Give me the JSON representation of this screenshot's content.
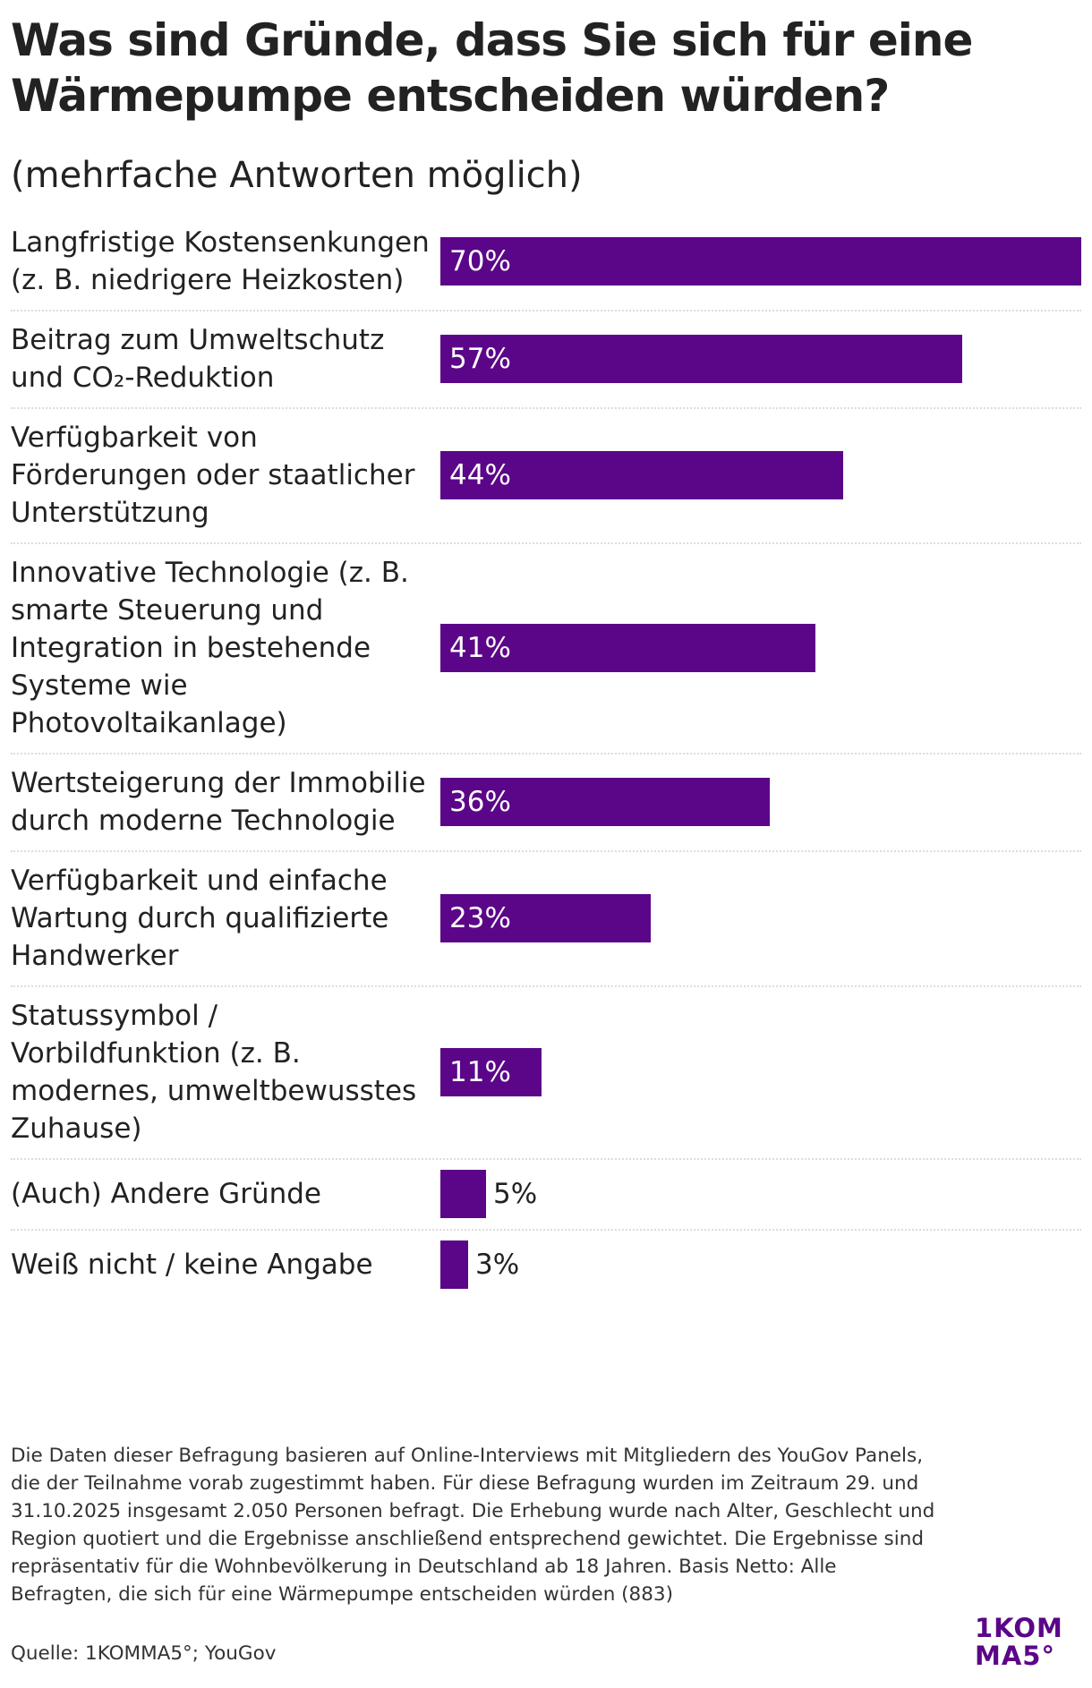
{
  "header": {
    "title": "Was sind Gründe, dass Sie sich für eine Wärmepumpe entscheiden würden?",
    "subtitle": "(mehrfache Antworten möglich)"
  },
  "colors": {
    "bar": "#5b0688",
    "text": "#222222",
    "divider": "#dddddd"
  },
  "chart_data": {
    "type": "bar",
    "orientation": "horizontal",
    "title": "Was sind Gründe, dass Sie sich für eine Wärmepumpe entscheiden würden?",
    "subtitle": "(mehrfache Antworten möglich)",
    "xlabel": "",
    "ylabel": "",
    "unit": "%",
    "xlim": [
      0,
      70
    ],
    "grid": false,
    "legend": "none",
    "categories": [
      "Langfristige Kostensenkungen (z. B. niedrigere Heizkosten)",
      "Beitrag zum Umweltschutz und CO₂-Reduktion",
      "Verfügbarkeit von Förderungen oder staatlicher Unterstützung",
      "Innovative Technologie (z. B. smarte Steuerung und Integration in bestehende Systeme wie Photovoltaikanlage)",
      "Wertsteigerung der Immobilie durch moderne Technologie",
      "Verfügbarkeit und einfache Wartung durch qualifizierte Handwerker",
      "Statussymbol / Vorbildfunktion (z. B. modernes, umweltbewusstes Zuhause)",
      "(Auch) Andere Gründe",
      "Weiß nicht / keine Angabe"
    ],
    "values": [
      70,
      57,
      44,
      41,
      36,
      23,
      11,
      5,
      3
    ],
    "value_labels": [
      "70%",
      "57%",
      "44%",
      "41%",
      "36%",
      "23%",
      "11%",
      "5%",
      "3%"
    ]
  },
  "footnote": "Die Daten dieser Befragung basieren auf Online-Interviews mit Mitgliedern des YouGov Panels, die der Teilnahme vorab zugestimmt haben. Für diese Befragung wurden im Zeitraum 29. und 31.10.2025 insgesamt 2.050 Personen befragt. Die Erhebung wurde nach Alter, Geschlecht und Region quotiert und die Ergebnisse anschließend entsprechend gewichtet. Die Ergebnisse sind repräsentativ für die Wohnbevölkerung in Deutschland ab 18 Jahren. Basis Netto: Alle Befragten, die sich für eine Wärmepumpe entscheiden würden (883)",
  "source": "Quelle: 1KOMMA5°; YouGov",
  "logo": {
    "line1": "1KOM",
    "line2": "MA5°"
  }
}
